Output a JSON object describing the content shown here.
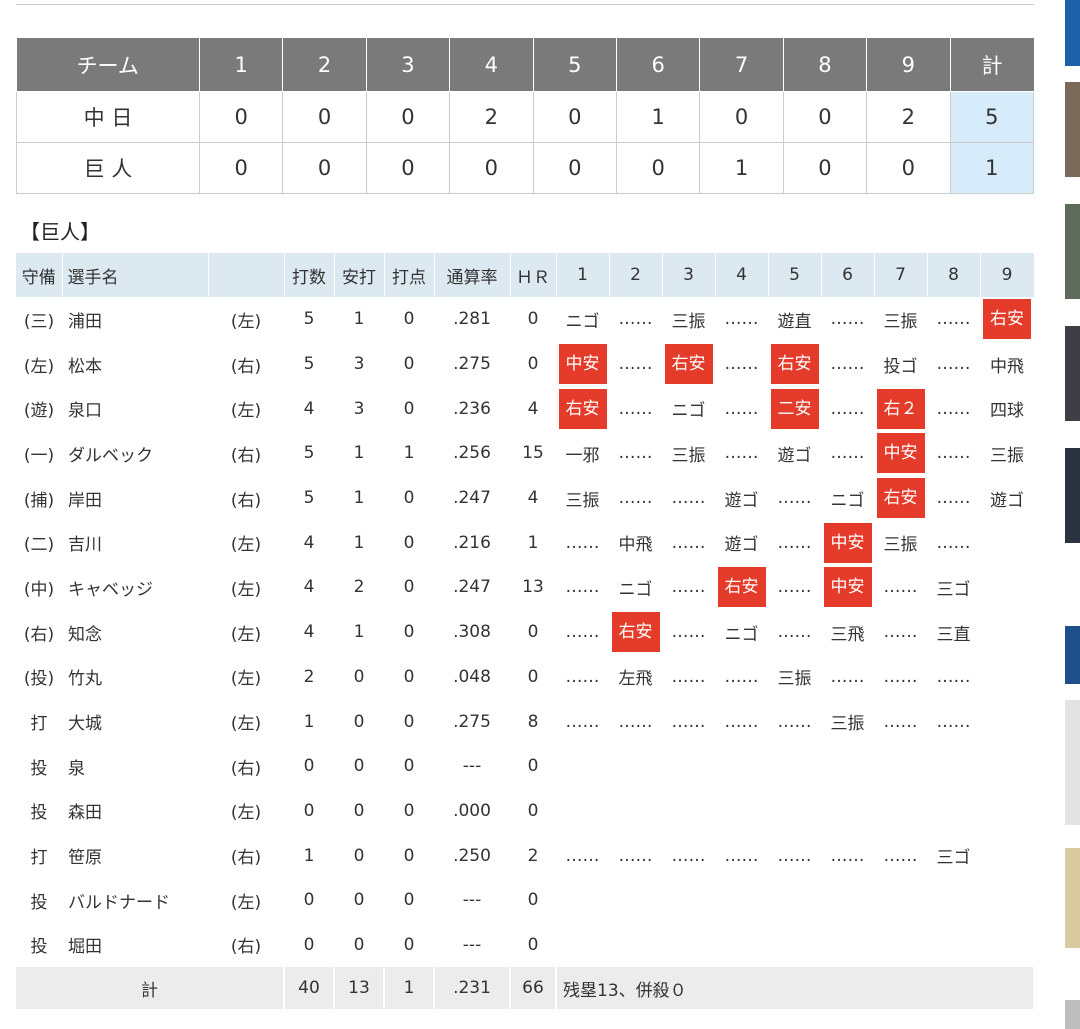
{
  "score": {
    "headers": [
      "チーム",
      "1",
      "2",
      "3",
      "4",
      "5",
      "6",
      "7",
      "8",
      "9",
      "計"
    ],
    "rows": [
      {
        "team": "中 日",
        "innings": [
          "0",
          "0",
          "0",
          "2",
          "0",
          "1",
          "0",
          "0",
          "2"
        ],
        "total": "5"
      },
      {
        "team": "巨 人",
        "innings": [
          "0",
          "0",
          "0",
          "0",
          "0",
          "0",
          "1",
          "0",
          "0"
        ],
        "total": "1"
      }
    ]
  },
  "team_title": "【巨人】",
  "box": {
    "headers": [
      "守備",
      "選手名",
      "",
      "打数",
      "安打",
      "打点",
      "通算率",
      "ＨＲ",
      "1",
      "2",
      "3",
      "4",
      "5",
      "6",
      "7",
      "8",
      "9"
    ],
    "players": [
      {
        "pos": "(三)",
        "name": "浦田",
        "bat": "(左)",
        "ab": "5",
        "h": "1",
        "rbi": "0",
        "avg": ".281",
        "hr": "0",
        "res": [
          "ニゴ",
          "……",
          "三振",
          "……",
          "遊直",
          "……",
          "三振",
          "……",
          "右安"
        ],
        "hits": [
          8
        ]
      },
      {
        "pos": "(左)",
        "name": "松本",
        "bat": "(右)",
        "ab": "5",
        "h": "3",
        "rbi": "0",
        "avg": ".275",
        "hr": "0",
        "res": [
          "中安",
          "……",
          "右安",
          "……",
          "右安",
          "……",
          "投ゴ",
          "……",
          "中飛"
        ],
        "hits": [
          0,
          2,
          4
        ]
      },
      {
        "pos": "(遊)",
        "name": "泉口",
        "bat": "(左)",
        "ab": "4",
        "h": "3",
        "rbi": "0",
        "avg": ".236",
        "hr": "4",
        "res": [
          "右安",
          "……",
          "ニゴ",
          "……",
          "二安",
          "……",
          "右２",
          "……",
          "四球"
        ],
        "hits": [
          0,
          4,
          6
        ]
      },
      {
        "pos": "(一)",
        "name": "ダルベック",
        "bat": "(右)",
        "ab": "5",
        "h": "1",
        "rbi": "1",
        "avg": ".256",
        "hr": "15",
        "res": [
          "一邪",
          "……",
          "三振",
          "……",
          "遊ゴ",
          "……",
          "中安",
          "……",
          "三振"
        ],
        "hits": [
          6
        ]
      },
      {
        "pos": "(捕)",
        "name": "岸田",
        "bat": "(右)",
        "ab": "5",
        "h": "1",
        "rbi": "0",
        "avg": ".247",
        "hr": "4",
        "res": [
          "三振",
          "……",
          "……",
          "遊ゴ",
          "……",
          "ニゴ",
          "右安",
          "……",
          "遊ゴ"
        ],
        "hits": [
          6
        ]
      },
      {
        "pos": "(二)",
        "name": "吉川",
        "bat": "(左)",
        "ab": "4",
        "h": "1",
        "rbi": "0",
        "avg": ".216",
        "hr": "1",
        "res": [
          "……",
          "中飛",
          "……",
          "遊ゴ",
          "……",
          "中安",
          "三振",
          "……",
          ""
        ],
        "hits": [
          5
        ]
      },
      {
        "pos": "(中)",
        "name": "キャベッジ",
        "bat": "(左)",
        "ab": "4",
        "h": "2",
        "rbi": "0",
        "avg": ".247",
        "hr": "13",
        "res": [
          "……",
          "ニゴ",
          "……",
          "右安",
          "……",
          "中安",
          "……",
          "三ゴ",
          ""
        ],
        "hits": [
          3,
          5
        ]
      },
      {
        "pos": "(右)",
        "name": "知念",
        "bat": "(左)",
        "ab": "4",
        "h": "1",
        "rbi": "0",
        "avg": ".308",
        "hr": "0",
        "res": [
          "……",
          "右安",
          "……",
          "ニゴ",
          "……",
          "三飛",
          "……",
          "三直",
          ""
        ],
        "hits": [
          1
        ]
      },
      {
        "pos": "(投)",
        "name": "竹丸",
        "bat": "(左)",
        "ab": "2",
        "h": "0",
        "rbi": "0",
        "avg": ".048",
        "hr": "0",
        "res": [
          "……",
          "左飛",
          "……",
          "……",
          "三振",
          "……",
          "……",
          "……",
          ""
        ],
        "hits": []
      },
      {
        "pos": "打",
        "name": "大城",
        "bat": "(左)",
        "ab": "1",
        "h": "0",
        "rbi": "0",
        "avg": ".275",
        "hr": "8",
        "res": [
          "……",
          "……",
          "……",
          "……",
          "……",
          "三振",
          "……",
          "……",
          ""
        ],
        "hits": []
      },
      {
        "pos": "投",
        "name": "泉",
        "bat": "(右)",
        "ab": "0",
        "h": "0",
        "rbi": "0",
        "avg": "---",
        "hr": "0",
        "res": [
          "",
          "",
          "",
          "",
          "",
          "",
          "",
          "",
          ""
        ],
        "hits": []
      },
      {
        "pos": "投",
        "name": "森田",
        "bat": "(左)",
        "ab": "0",
        "h": "0",
        "rbi": "0",
        "avg": ".000",
        "hr": "0",
        "res": [
          "",
          "",
          "",
          "",
          "",
          "",
          "",
          "",
          ""
        ],
        "hits": []
      },
      {
        "pos": "打",
        "name": "笹原",
        "bat": "(右)",
        "ab": "1",
        "h": "0",
        "rbi": "0",
        "avg": ".250",
        "hr": "2",
        "res": [
          "……",
          "……",
          "……",
          "……",
          "……",
          "……",
          "……",
          "三ゴ",
          ""
        ],
        "hits": []
      },
      {
        "pos": "投",
        "name": "バルドナード",
        "bat": "(左)",
        "ab": "0",
        "h": "0",
        "rbi": "0",
        "avg": "---",
        "hr": "0",
        "res": [
          "",
          "",
          "",
          "",
          "",
          "",
          "",
          "",
          ""
        ],
        "hits": []
      },
      {
        "pos": "投",
        "name": "堀田",
        "bat": "(右)",
        "ab": "0",
        "h": "0",
        "rbi": "0",
        "avg": "---",
        "hr": "0",
        "res": [
          "",
          "",
          "",
          "",
          "",
          "",
          "",
          "",
          ""
        ],
        "hits": []
      }
    ],
    "total": {
      "label": "計",
      "ab": "40",
      "h": "13",
      "rbi": "1",
      "avg": ".231",
      "hr": "66",
      "note": "残塁13、併殺０"
    }
  },
  "colors": {
    "header_gray": "#7a7a7a",
    "header_blue": "#dce9f1",
    "total_blue": "#d6ecfa",
    "hit_red": "#e43b2a"
  }
}
